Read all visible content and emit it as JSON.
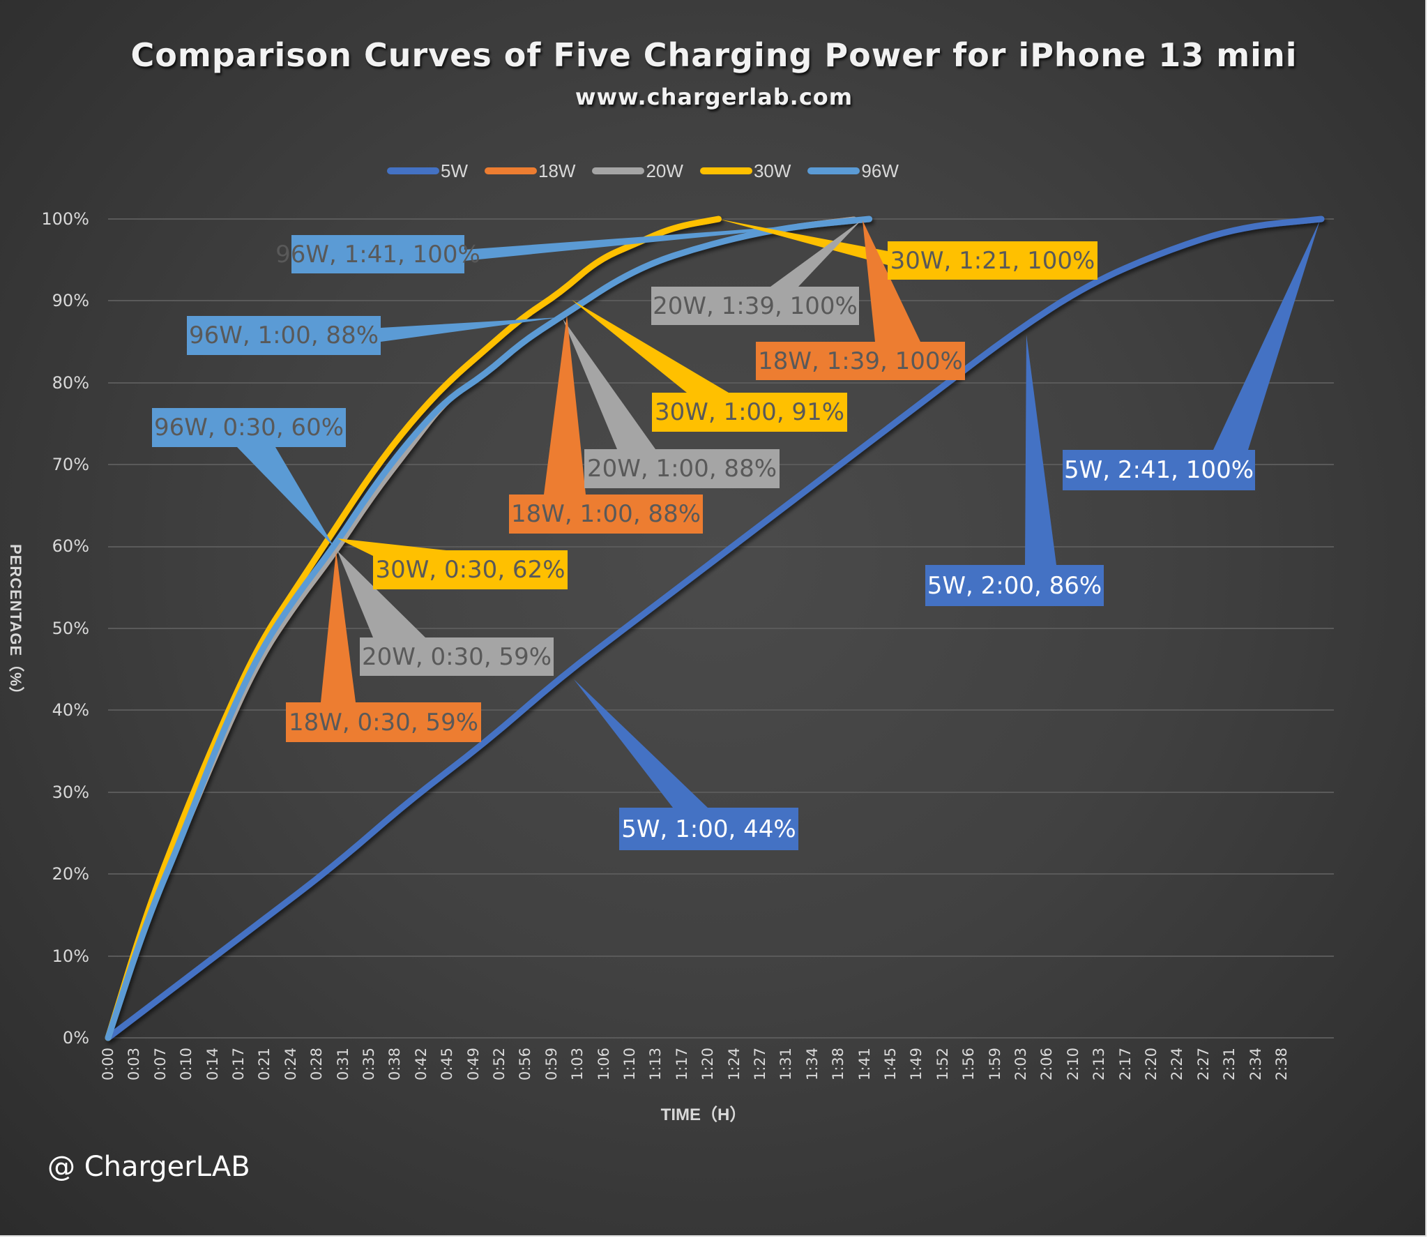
{
  "title": "Comparison Curves of Five Charging Power for iPhone 13 mini",
  "subtitle": "www.chargerlab.com",
  "watermark": "@ ChargerLAB",
  "colors": {
    "5W": "#4472c4",
    "18W": "#ed7d31",
    "20W": "#a5a5a5",
    "30W": "#ffc000",
    "96W": "#5b9bd5",
    "callout_text_dark": "#595959",
    "callout_text_light": "#ffffff",
    "grid": "#595959",
    "axis_text": "#d9d9d9"
  },
  "legend": [
    {
      "label": "5W",
      "color": "#4472c4"
    },
    {
      "label": "18W",
      "color": "#ed7d31"
    },
    {
      "label": "20W",
      "color": "#a5a5a5"
    },
    {
      "label": "30W",
      "color": "#ffc000"
    },
    {
      "label": "96W",
      "color": "#5b9bd5"
    }
  ],
  "axes": {
    "ylabel": "PERCENTAGE（%）",
    "xlabel": "TIME（H）",
    "yticks": [
      "0%",
      "10%",
      "20%",
      "30%",
      "40%",
      "50%",
      "60%",
      "70%",
      "80%",
      "90%",
      "100%"
    ],
    "xticks": [
      "0:00",
      "0:03",
      "0:07",
      "0:10",
      "0:14",
      "0:17",
      "0:21",
      "0:24",
      "0:28",
      "0:31",
      "0:35",
      "0:38",
      "0:42",
      "0:45",
      "0:49",
      "0:52",
      "0:56",
      "0:59",
      "1:03",
      "1:06",
      "1:10",
      "1:13",
      "1:17",
      "1:20",
      "1:24",
      "1:27",
      "1:31",
      "1:34",
      "1:38",
      "1:41",
      "1:45",
      "1:49",
      "1:52",
      "1:56",
      "1:59",
      "2:03",
      "2:06",
      "2:10",
      "2:13",
      "2:17",
      "2:20",
      "2:24",
      "2:27",
      "2:31",
      "2:34",
      "2:38"
    ]
  },
  "callouts": [
    {
      "text": "96W, 1:41, 100%",
      "series": "96W"
    },
    {
      "text": "30W, 1:21, 100%",
      "series": "30W"
    },
    {
      "text": "20W, 1:39, 100%",
      "series": "20W"
    },
    {
      "text": "18W, 1:39, 100%",
      "series": "18W"
    },
    {
      "text": "96W, 1:00, 88%",
      "series": "96W"
    },
    {
      "text": "30W, 1:00, 91%",
      "series": "30W"
    },
    {
      "text": "20W, 1:00, 88%",
      "series": "20W"
    },
    {
      "text": "18W, 1:00, 88%",
      "series": "18W"
    },
    {
      "text": "96W, 0:30, 60%",
      "series": "96W"
    },
    {
      "text": "30W, 0:30, 62%",
      "series": "30W"
    },
    {
      "text": "20W, 0:30, 59%",
      "series": "20W"
    },
    {
      "text": "18W, 0:30, 59%",
      "series": "18W"
    },
    {
      "text": "5W, 1:00, 44%",
      "series": "5W"
    },
    {
      "text": "5W, 2:00, 86%",
      "series": "5W"
    },
    {
      "text": "5W, 2:41, 100%",
      "series": "5W"
    }
  ],
  "chart_data": {
    "type": "line",
    "title": "Comparison Curves of Five Charging Power for iPhone 13 mini",
    "subtitle": "www.chargerlab.com",
    "xlabel": "TIME（H）",
    "ylabel": "PERCENTAGE（%）",
    "ylim": [
      0,
      100
    ],
    "x_unit": "minutes",
    "grid": true,
    "legend_position": "top",
    "series": [
      {
        "name": "5W",
        "color": "#4472c4",
        "x": [
          0,
          10,
          20,
          30,
          40,
          50,
          60,
          70,
          80,
          90,
          100,
          110,
          120,
          130,
          140,
          150,
          161
        ],
        "values": [
          0,
          7,
          14,
          21,
          29,
          36,
          44,
          51,
          58,
          65,
          72,
          79,
          86,
          92,
          96,
          99,
          100
        ]
      },
      {
        "name": "18W",
        "color": "#ed7d31",
        "x": [
          0,
          5,
          10,
          15,
          20,
          25,
          30,
          35,
          40,
          45,
          50,
          55,
          60,
          70,
          80,
          90,
          99
        ],
        "values": [
          0,
          14,
          25,
          36,
          46,
          53,
          59,
          66,
          72,
          78,
          81,
          85,
          88,
          94,
          97,
          99,
          100
        ]
      },
      {
        "name": "20W",
        "color": "#a5a5a5",
        "x": [
          0,
          5,
          10,
          15,
          20,
          25,
          30,
          35,
          40,
          45,
          50,
          55,
          60,
          70,
          80,
          90,
          99
        ],
        "values": [
          0,
          14,
          25,
          36,
          46,
          53,
          59,
          66,
          72,
          78,
          81,
          85,
          88,
          94,
          97,
          99,
          100
        ]
      },
      {
        "name": "30W",
        "color": "#ffc000",
        "x": [
          0,
          5,
          10,
          15,
          20,
          25,
          30,
          35,
          40,
          45,
          50,
          55,
          60,
          65,
          70,
          75,
          81
        ],
        "values": [
          0,
          15,
          27,
          38,
          48,
          55,
          62,
          69,
          75,
          80,
          84,
          88,
          91,
          95,
          97,
          99,
          100
        ]
      },
      {
        "name": "96W",
        "color": "#5b9bd5",
        "x": [
          0,
          5,
          10,
          15,
          20,
          25,
          30,
          35,
          40,
          45,
          50,
          55,
          60,
          70,
          80,
          90,
          101
        ],
        "values": [
          0,
          14,
          25,
          37,
          47,
          54,
          60,
          67,
          73,
          78,
          81,
          85,
          88,
          94,
          97,
          99,
          100
        ]
      }
    ],
    "annotations": [
      "96W, 1:41, 100%",
      "30W, 1:21, 100%",
      "20W, 1:39, 100%",
      "18W, 1:39, 100%",
      "96W, 1:00, 88%",
      "30W, 1:00, 91%",
      "20W, 1:00, 88%",
      "18W, 1:00, 88%",
      "96W, 0:30, 60%",
      "30W, 0:30, 62%",
      "20W, 0:30, 59%",
      "18W, 0:30, 59%",
      "5W, 1:00, 44%",
      "5W, 2:00, 86%",
      "5W, 2:41, 100%"
    ]
  }
}
